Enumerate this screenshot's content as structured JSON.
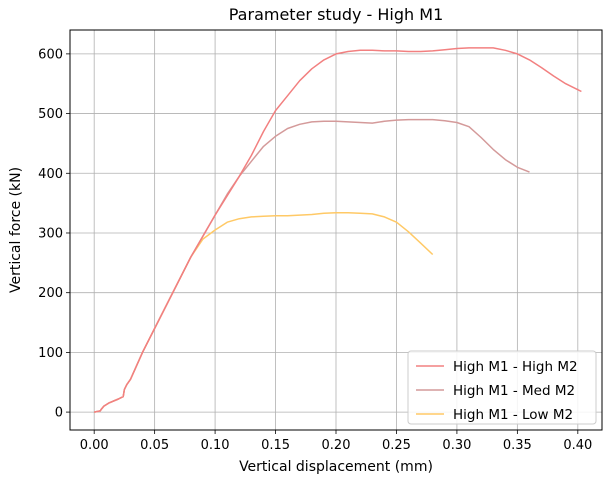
{
  "chart_data": {
    "type": "line",
    "title": "Parameter study - High M1",
    "xlabel": "Vertical displacement (mm)",
    "ylabel": "Vertical force (kN)",
    "xlim": [
      -0.02,
      0.42
    ],
    "ylim": [
      -30,
      640
    ],
    "xticks": [
      0.0,
      0.05,
      0.1,
      0.15,
      0.2,
      0.25,
      0.3,
      0.35,
      0.4
    ],
    "xtick_labels": [
      "0.00",
      "0.05",
      "0.10",
      "0.15",
      "0.20",
      "0.25",
      "0.30",
      "0.35",
      "0.40"
    ],
    "yticks": [
      0,
      100,
      200,
      300,
      400,
      500,
      600
    ],
    "ytick_labels": [
      "0",
      "100",
      "200",
      "300",
      "400",
      "500",
      "600"
    ],
    "grid": true,
    "legend_position": "bottom-right",
    "series": [
      {
        "name": "High M1 - High M2",
        "color": "#f28080",
        "x": [
          0.0,
          0.005,
          0.006,
          0.008,
          0.012,
          0.02,
          0.024,
          0.025,
          0.027,
          0.03,
          0.04,
          0.06,
          0.08,
          0.1,
          0.12,
          0.13,
          0.14,
          0.15,
          0.16,
          0.17,
          0.18,
          0.19,
          0.2,
          0.21,
          0.22,
          0.23,
          0.24,
          0.25,
          0.26,
          0.27,
          0.28,
          0.29,
          0.3,
          0.31,
          0.32,
          0.33,
          0.34,
          0.35,
          0.36,
          0.37,
          0.38,
          0.39,
          0.4,
          0.403
        ],
        "y": [
          0,
          2,
          5,
          10,
          15,
          22,
          26,
          38,
          46,
          55,
          100,
          180,
          260,
          330,
          395,
          430,
          470,
          505,
          530,
          555,
          575,
          590,
          600,
          604,
          606,
          606,
          605,
          605,
          604,
          604,
          605,
          607,
          609,
          610,
          610,
          610,
          606,
          600,
          590,
          577,
          563,
          550,
          540,
          537
        ]
      },
      {
        "name": "High M1 - Med M2",
        "color": "#d49a9a",
        "x": [
          0.0,
          0.005,
          0.006,
          0.008,
          0.012,
          0.02,
          0.024,
          0.025,
          0.027,
          0.03,
          0.04,
          0.06,
          0.08,
          0.1,
          0.11,
          0.12,
          0.13,
          0.14,
          0.15,
          0.16,
          0.17,
          0.18,
          0.19,
          0.2,
          0.21,
          0.22,
          0.23,
          0.24,
          0.25,
          0.26,
          0.27,
          0.28,
          0.29,
          0.3,
          0.31,
          0.32,
          0.33,
          0.34,
          0.35,
          0.36
        ],
        "y": [
          0,
          2,
          5,
          10,
          15,
          22,
          26,
          38,
          46,
          55,
          100,
          180,
          260,
          330,
          365,
          395,
          420,
          445,
          462,
          475,
          482,
          486,
          487,
          487,
          486,
          485,
          484,
          487,
          489,
          490,
          490,
          490,
          488,
          485,
          478,
          460,
          440,
          423,
          410,
          402
        ]
      },
      {
        "name": "High M1 - Low M2",
        "color": "#ffc966",
        "x": [
          0.0,
          0.005,
          0.006,
          0.008,
          0.012,
          0.02,
          0.024,
          0.025,
          0.027,
          0.03,
          0.04,
          0.06,
          0.08,
          0.09,
          0.1,
          0.11,
          0.12,
          0.13,
          0.14,
          0.15,
          0.16,
          0.17,
          0.18,
          0.19,
          0.2,
          0.21,
          0.22,
          0.23,
          0.24,
          0.25,
          0.26,
          0.27,
          0.28
        ],
        "y": [
          0,
          2,
          5,
          10,
          15,
          22,
          26,
          38,
          46,
          55,
          100,
          180,
          260,
          290,
          305,
          318,
          324,
          327,
          328,
          329,
          329,
          330,
          331,
          333,
          334,
          334,
          333,
          332,
          327,
          318,
          302,
          283,
          264
        ]
      }
    ]
  }
}
